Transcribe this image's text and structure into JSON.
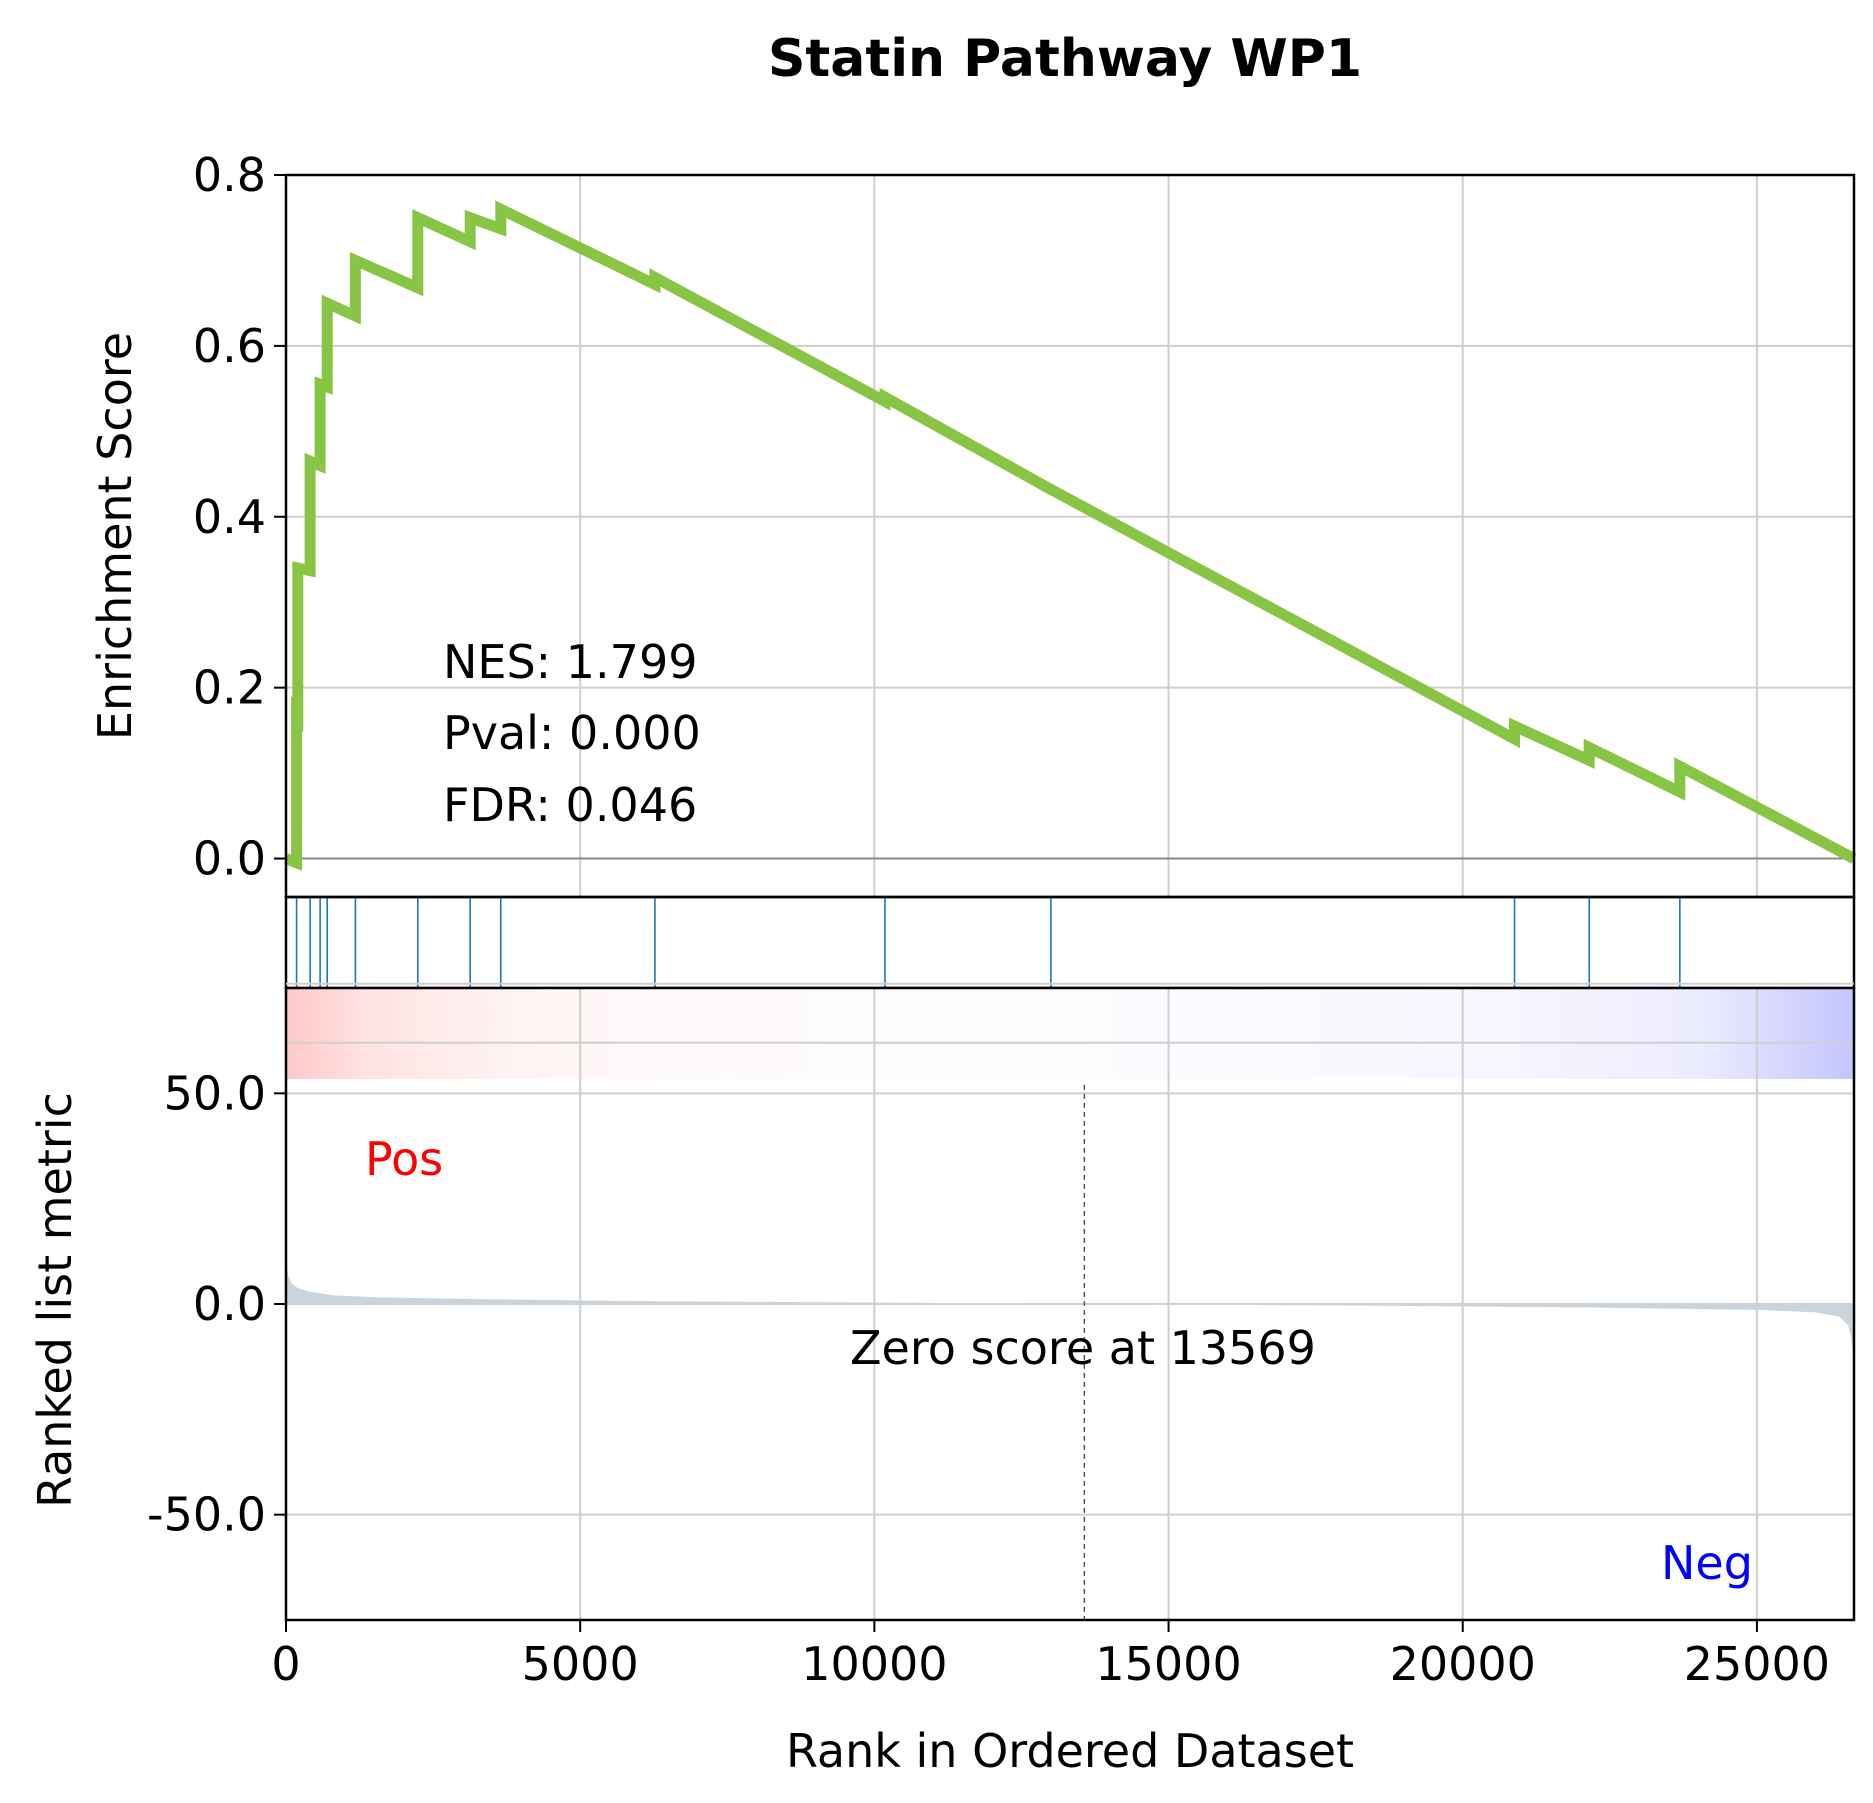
{
  "chart_data": {
    "type": "line",
    "title": "Statin Pathway WP1",
    "xlabel": "Rank in Ordered Dataset",
    "xlim": [
      0,
      26650
    ],
    "x_ticks": [
      0,
      5000,
      10000,
      15000,
      20000,
      25000
    ],
    "x_tick_labels": [
      "0",
      "5000",
      "10000",
      "15000",
      "20000",
      "25000"
    ],
    "grid": true,
    "panels": {
      "enrichment": {
        "ylabel": "Enrichment Score",
        "ylim": [
          -0.045,
          0.8
        ],
        "y_ticks": [
          0.0,
          0.2,
          0.4,
          0.6,
          0.8
        ],
        "y_tick_labels": [
          "0.0",
          "0.2",
          "0.4",
          "0.6",
          "0.8"
        ],
        "color": "#88c544",
        "series": [
          {
            "x": [
              0,
              180,
              180,
              200,
              200,
              410,
              410,
              580,
              580,
              700,
              700,
              1180,
              1180,
              2240,
              2240,
              3130,
              3130,
              3650,
              3650,
              6270,
              6270,
              10180,
              10180,
              13000,
              13000,
              20880,
              20880,
              22150,
              22150,
              23690,
              23690,
              26650
            ],
            "y": [
              0.0,
              -0.005,
              0.17,
              0.168,
              0.34,
              0.337,
              0.465,
              0.46,
              0.555,
              0.552,
              0.65,
              0.635,
              0.7,
              0.668,
              0.75,
              0.722,
              0.75,
              0.737,
              0.76,
              0.672,
              0.68,
              0.535,
              0.54,
              0.432,
              0.432,
              0.14,
              0.155,
              0.115,
              0.13,
              0.078,
              0.108,
              0.0
            ]
          }
        ],
        "annotations": [
          "NES: 1.799",
          "Pval: 0.000",
          "FDR: 0.046"
        ]
      },
      "hits": {
        "color": "#1f77b4",
        "positions": [
          180,
          410,
          580,
          700,
          1180,
          2240,
          3130,
          3650,
          6270,
          10180,
          13000,
          20880,
          22150,
          23690
        ]
      },
      "ranked_metric": {
        "ylabel": "Ranked list metric",
        "ylim": [
          -75,
          75
        ],
        "y_ticks": [
          50.0,
          0.0,
          -50.0
        ],
        "y_tick_labels": [
          "50.0",
          "0.0",
          "-50.0"
        ],
        "fill_color": "#c9d4dd",
        "x": [
          0,
          10,
          40,
          100,
          200,
          400,
          800,
          1500,
          3000,
          6000,
          10000,
          13569,
          18000,
          22000,
          25000,
          26000,
          26400,
          26550,
          26600,
          26650
        ],
        "values": [
          13,
          9.5,
          6.5,
          4.8,
          3.8,
          2.9,
          2.1,
          1.6,
          1.2,
          0.7,
          0.35,
          0.0,
          -0.35,
          -0.8,
          -1.4,
          -2.0,
          -3.0,
          -5.0,
          -8.0,
          -14
        ],
        "zero_cross_rank": 13569,
        "zero_label": "Zero score at 13569",
        "pos_label": "Pos",
        "neg_label": "Neg",
        "pos_color": "#ff0000",
        "neg_color": "#0000ff"
      }
    }
  }
}
